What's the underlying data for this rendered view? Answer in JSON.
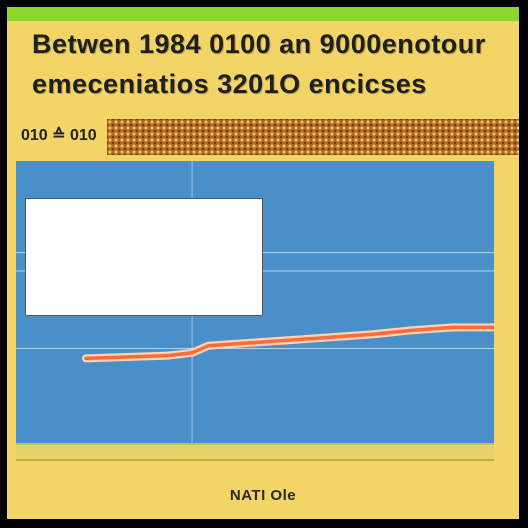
{
  "colors": {
    "frame": "#000000",
    "background": "#f3d466",
    "top_strip": "#8cd52d",
    "plot_background": "#4a8fc8",
    "gridline": "#cfe4f3",
    "line": "#ff6a3c",
    "line_glow": "#ffd4b0",
    "texture": "#b2671a"
  },
  "header": {
    "title_line_1": "Betwen 1984 0100 an 9000enotour",
    "title_line_2": "emeceniatios 3201O encicses",
    "subtitle": "010 ≙ 010"
  },
  "annotation": {
    "text": ""
  },
  "footer": {
    "label": "NATI Ole"
  },
  "chart_data": {
    "type": "line",
    "title": "Betwen 1984 0100 an 9000enotour emeceniatios 3201O encicses",
    "xlabel": "",
    "ylabel": "",
    "xlim": [
      0,
      10
    ],
    "ylim": [
      0,
      10
    ],
    "grid": true,
    "series": [
      {
        "x": [
          0,
          1,
          2,
          2.6,
          3,
          4,
          5,
          6,
          7,
          8,
          9,
          10
        ],
        "values": [
          3.0,
          3.05,
          3.1,
          3.2,
          3.45,
          3.55,
          3.65,
          3.75,
          3.85,
          4.0,
          4.1,
          4.1
        ]
      }
    ]
  }
}
